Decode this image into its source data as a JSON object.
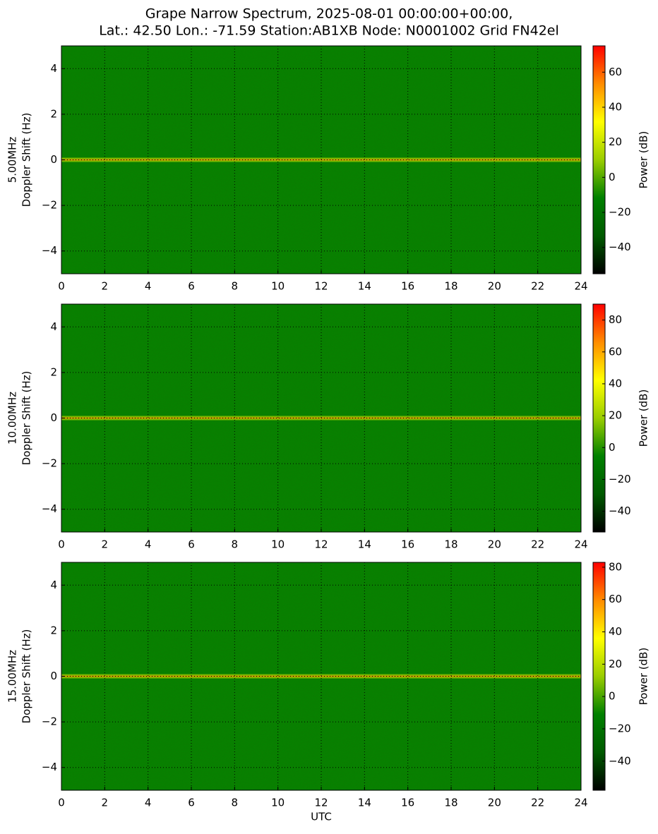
{
  "title": [
    "Grape Narrow Spectrum, 2025-08-01 00:00:00+00:00,",
    "Lat.: 42.50 Lon.: -71.59 Station:AB1XB Node: N0001002 Grid FN42el"
  ],
  "chart_data": [
    {
      "type": "spectrogram",
      "ylabel": [
        "5.00MHz",
        "Doppler Shift (Hz)"
      ],
      "xlim": [
        0,
        24
      ],
      "xticks": [
        0,
        2,
        4,
        6,
        8,
        10,
        12,
        14,
        16,
        18,
        20,
        22,
        24
      ],
      "ylim": [
        -5,
        5
      ],
      "yticks": [
        {
          "value": -4,
          "label": "−4"
        },
        {
          "value": -2,
          "label": "−2"
        },
        0,
        2,
        4
      ],
      "grid": true,
      "colorbar_label": "Power (dB)",
      "clim": [
        -55,
        75
      ],
      "cticks": [
        {
          "value": -40,
          "label": "−40"
        },
        {
          "value": -20,
          "label": "−20"
        },
        0,
        20,
        40,
        60
      ],
      "colormap": [
        "#000000",
        "#005a00",
        "#008000",
        "#9acd00",
        "#ffff00",
        "#ff8c00",
        "#ff0000"
      ]
    },
    {
      "type": "spectrogram",
      "ylabel": [
        "10.00MHz",
        "Doppler Shift (Hz)"
      ],
      "xlim": [
        0,
        24
      ],
      "xticks": [
        0,
        2,
        4,
        6,
        8,
        10,
        12,
        14,
        16,
        18,
        20,
        22,
        24
      ],
      "ylim": [
        -5,
        5
      ],
      "yticks": [
        {
          "value": -4,
          "label": "−4"
        },
        {
          "value": -2,
          "label": "−2"
        },
        0,
        2,
        4
      ],
      "grid": true,
      "colorbar_label": "Power (dB)",
      "clim": [
        -53,
        90
      ],
      "cticks": [
        {
          "value": -40,
          "label": "−40"
        },
        {
          "value": -20,
          "label": "−20"
        },
        0,
        20,
        40,
        60,
        80
      ],
      "colormap": [
        "#000000",
        "#005a00",
        "#008000",
        "#9acd00",
        "#ffff00",
        "#ff8c00",
        "#ff0000"
      ]
    },
    {
      "type": "spectrogram",
      "ylabel": [
        "15.00MHz",
        "Doppler Shift (Hz)"
      ],
      "xlabel": "UTC",
      "xlim": [
        0,
        24
      ],
      "xticks": [
        0,
        2,
        4,
        6,
        8,
        10,
        12,
        14,
        16,
        18,
        20,
        22,
        24
      ],
      "ylim": [
        -5,
        5
      ],
      "yticks": [
        {
          "value": -4,
          "label": "−4"
        },
        {
          "value": -2,
          "label": "−2"
        },
        0,
        2,
        4
      ],
      "grid": true,
      "colorbar_label": "Power (dB)",
      "clim": [
        -58,
        83
      ],
      "cticks": [
        {
          "value": -40,
          "label": "−40"
        },
        {
          "value": -20,
          "label": "−20"
        },
        0,
        20,
        40,
        60,
        80
      ],
      "colormap": [
        "#000000",
        "#005a00",
        "#008000",
        "#9acd00",
        "#ffff00",
        "#ff8c00",
        "#ff0000"
      ]
    }
  ]
}
